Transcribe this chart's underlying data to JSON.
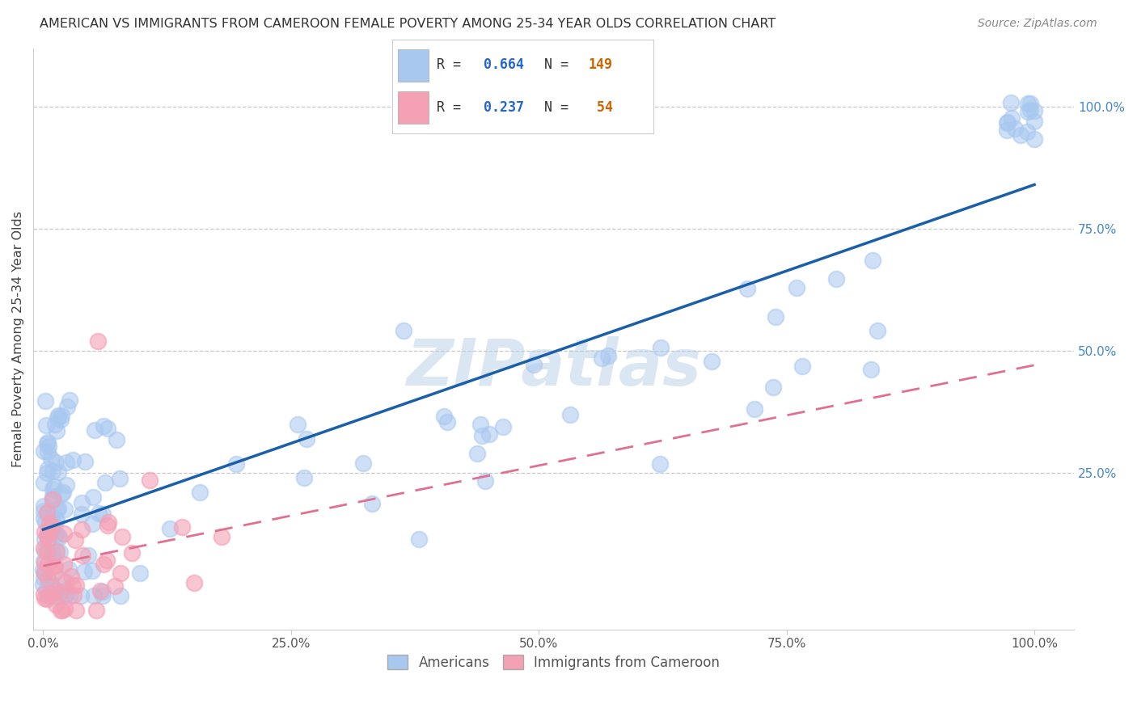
{
  "title": "AMERICAN VS IMMIGRANTS FROM CAMEROON FEMALE POVERTY AMONG 25-34 YEAR OLDS CORRELATION CHART",
  "source": "Source: ZipAtlas.com",
  "ylabel": "Female Poverty Among 25-34 Year Olds",
  "r_american": 0.664,
  "n_american": 149,
  "r_cameroon": 0.237,
  "n_cameroon": 54,
  "american_color": "#a8c8f0",
  "cameroon_color": "#f4a0b5",
  "american_line_color": "#1a5fa8",
  "cameroon_line_color": "#e07090",
  "watermark": "ZIPatlas",
  "background_color": "#ffffff",
  "grid_color": "#c8c8c8",
  "ytick_color": "#4488cc",
  "xtick_color": "#555555",
  "legend_r_color": "#2266cc",
  "legend_n_color": "#cc6600"
}
